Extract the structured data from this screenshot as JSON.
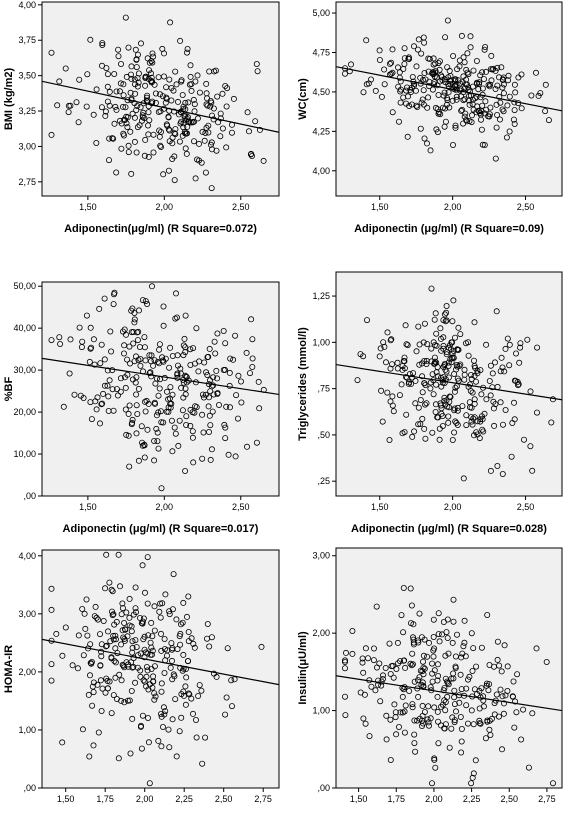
{
  "figure_title": "",
  "chart_data": [
    {
      "type": "scatter",
      "ylabel": "BMI (kg/m2)",
      "xlabel": "Adiponectin(μg/ml) (R Square=0.072)",
      "xlim": [
        1.2,
        2.75
      ],
      "ylim": [
        2.65,
        4.02
      ],
      "xticks": [
        1.5,
        2.0,
        2.5
      ],
      "xtick_labels": [
        "1,50",
        "2,00",
        "2,50"
      ],
      "yticks": [
        2.75,
        3.0,
        3.25,
        3.5,
        3.75,
        4.0
      ],
      "ytick_labels": [
        "2,75",
        "3,00",
        "3,25",
        "3,50",
        "3,75",
        "4,00"
      ],
      "fit_line": {
        "x": [
          1.2,
          2.75
        ],
        "y": [
          3.46,
          3.1
        ]
      },
      "center": [
        1.98,
        3.29
      ],
      "spread": [
        0.27,
        0.22
      ],
      "seed": 11,
      "n": 290
    },
    {
      "type": "scatter",
      "ylabel": "WC(cm)",
      "xlabel": "Adiponectin (μg/ml) (R Square=0.09)",
      "xlim": [
        1.2,
        2.75
      ],
      "ylim": [
        3.84,
        5.07
      ],
      "xticks": [
        1.5,
        2.0,
        2.5
      ],
      "xtick_labels": [
        "1,50",
        "2,00",
        "2,50"
      ],
      "yticks": [
        4.0,
        4.25,
        4.5,
        4.75,
        5.0
      ],
      "ytick_labels": [
        "4,00",
        "4,25",
        "4,50",
        "4,75",
        "5,00"
      ],
      "fit_line": {
        "x": [
          1.2,
          2.75
        ],
        "y": [
          4.66,
          4.38
        ]
      },
      "center": [
        1.98,
        4.52
      ],
      "spread": [
        0.27,
        0.14
      ],
      "seed": 23,
      "n": 290
    },
    {
      "type": "scatter",
      "ylabel": "%BF",
      "xlabel": "Adiponectin (μg/ml) (R Square=0.017)",
      "xlim": [
        1.2,
        2.75
      ],
      "ylim": [
        0,
        51
      ],
      "xticks": [
        1.5,
        2.0,
        2.5
      ],
      "xtick_labels": [
        "1,50",
        "2,00",
        "2,50"
      ],
      "yticks": [
        0,
        10,
        20,
        30,
        40,
        50
      ],
      "ytick_labels": [
        ",00",
        "10,00",
        "20,00",
        "30,00",
        "40,00",
        "50,00"
      ],
      "fit_line": {
        "x": [
          1.2,
          2.75
        ],
        "y": [
          32.8,
          24.2
        ]
      },
      "center": [
        1.98,
        28.5
      ],
      "spread": [
        0.28,
        9.5
      ],
      "seed": 37,
      "n": 290
    },
    {
      "type": "scatter",
      "ylabel": "Triglycerides (mmol/l)",
      "xlabel": "Adiponectin (μg/ml) (R Square=0.028)",
      "xlim": [
        1.2,
        2.75
      ],
      "ylim": [
        0.17,
        1.38
      ],
      "xticks": [
        1.5,
        2.0,
        2.5
      ],
      "xtick_labels": [
        "1,50",
        "2,00",
        "2,50"
      ],
      "yticks": [
        0.25,
        0.5,
        0.75,
        1.0,
        1.25
      ],
      "ytick_labels": [
        ",25",
        ",50",
        ",75",
        "1,00",
        "1,25"
      ],
      "fit_line": {
        "x": [
          1.2,
          2.75
        ],
        "y": [
          0.88,
          0.69
        ]
      },
      "center": [
        2.0,
        0.79
      ],
      "spread": [
        0.27,
        0.18
      ],
      "seed": 41,
      "n": 290
    },
    {
      "type": "scatter",
      "ylabel": "HOMA-IR",
      "xlabel": "Adiponectin(μg/ml) (R Square=0.026)",
      "xlim": [
        1.35,
        2.85
      ],
      "ylim": [
        0,
        4.1
      ],
      "xticks": [
        1.5,
        1.75,
        2.0,
        2.25,
        2.5,
        2.75
      ],
      "xtick_labels": [
        "1,50",
        "1,75",
        "2,00",
        "2,25",
        "2,50",
        "2,75"
      ],
      "yticks": [
        0,
        1,
        2,
        3,
        4
      ],
      "ytick_labels": [
        ",00",
        "1,00",
        "2,00",
        "3,00",
        "4,00"
      ],
      "fit_line": {
        "x": [
          1.35,
          2.85
        ],
        "y": [
          2.56,
          1.78
        ]
      },
      "center": [
        2.0,
        2.15
      ],
      "spread": [
        0.27,
        0.75
      ],
      "seed": 53,
      "n": 280
    },
    {
      "type": "scatter",
      "ylabel": "Insulin(μU/ml)",
      "xlabel": "Adiponectin (μg/ml) (R Square=0.025)",
      "xlim": [
        1.35,
        2.85
      ],
      "ylim": [
        0,
        3.1
      ],
      "xticks": [
        1.5,
        1.75,
        2.0,
        2.25,
        2.5,
        2.75
      ],
      "xtick_labels": [
        "1,50",
        "1,75",
        "2,00",
        "2,25",
        "2,50",
        "2,75"
      ],
      "yticks": [
        0,
        1,
        2,
        3
      ],
      "ytick_labels": [
        ",00",
        "1,00",
        "2,00",
        "3,00"
      ],
      "fit_line": {
        "x": [
          1.35,
          2.85
        ],
        "y": [
          1.45,
          1.0
        ]
      },
      "center": [
        2.0,
        1.25
      ],
      "spread": [
        0.27,
        0.48
      ],
      "seed": 67,
      "n": 280
    }
  ]
}
